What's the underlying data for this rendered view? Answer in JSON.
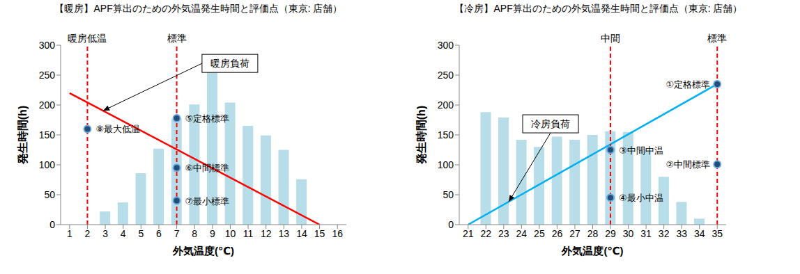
{
  "chart_data": [
    {
      "type": "bar",
      "title": "【暖房】APF算出のための外気温発生時間と評価点（東京: 店舗）",
      "x_label": "外気温度(℃)",
      "y_label": "発生時間(h)",
      "x": [
        1,
        2,
        3,
        4,
        5,
        6,
        7,
        8,
        9,
        10,
        11,
        12,
        13,
        14,
        15,
        16
      ],
      "values": [
        null,
        null,
        22,
        37,
        86,
        127,
        177,
        201,
        258,
        204,
        165,
        149,
        125,
        76,
        null,
        null
      ],
      "color": "#b7dde8",
      "xlim": [
        0.5,
        16.5
      ],
      "xticks": [
        1,
        2,
        3,
        4,
        5,
        6,
        7,
        8,
        9,
        10,
        11,
        12,
        13,
        14,
        15,
        16
      ],
      "ylim": [
        0,
        300
      ],
      "yticks": [
        0,
        50,
        100,
        150,
        200,
        250,
        300
      ],
      "grid": false,
      "series": [
        {
          "type": "line",
          "name": "暖房負荷",
          "color": "#ff0000",
          "x": [
            1,
            15
          ],
          "values": [
            220,
            0
          ]
        },
        {
          "type": "scatter",
          "color": "#1f4e79",
          "x": [
            2,
            7,
            7,
            7
          ],
          "values": [
            160,
            178,
            95,
            40
          ],
          "labels": [
            "⑧最大低温",
            "⑤定格標準",
            "⑥中間標準",
            "⑦最小標準"
          ]
        },
        {
          "type": "reference",
          "color": "#ff0000",
          "line_style": "dashed",
          "x": [
            2,
            7
          ],
          "labels": [
            "暖房低温",
            "標準"
          ]
        }
      ]
    },
    {
      "type": "bar",
      "title": "【冷房】APF算出のための外気温発生時間と評価点（東京: 店舗）",
      "x_label": "外気温度(℃)",
      "y_label": "発生時間(h)",
      "x": [
        21,
        22,
        23,
        24,
        25,
        26,
        27,
        28,
        29,
        30,
        31,
        32,
        33,
        34,
        35
      ],
      "values": [
        null,
        188,
        179,
        142,
        130,
        147,
        142,
        150,
        156,
        155,
        125,
        80,
        38,
        10,
        null
      ],
      "color": "#b7dde8",
      "xlim": [
        20.5,
        35.5
      ],
      "xticks": [
        21,
        22,
        23,
        24,
        25,
        26,
        27,
        28,
        29,
        30,
        31,
        32,
        33,
        34,
        35
      ],
      "ylim": [
        0,
        300
      ],
      "yticks": [
        0,
        50,
        100,
        150,
        200,
        250,
        300
      ],
      "grid": false,
      "series": [
        {
          "type": "line",
          "name": "冷房負荷",
          "color": "#00b0f0",
          "x": [
            21,
            35
          ],
          "values": [
            0,
            235
          ]
        },
        {
          "type": "scatter",
          "color": "#1f4e79",
          "x": [
            35,
            35,
            29,
            29
          ],
          "values": [
            235,
            101,
            125,
            45
          ],
          "labels": [
            "①定格標準",
            "②中間標準",
            "③中間中温",
            "④最小中温"
          ]
        },
        {
          "type": "reference",
          "color": "#ff0000",
          "line_style": "dashed",
          "x": [
            29,
            35
          ],
          "labels": [
            "中間",
            "標準"
          ]
        }
      ]
    }
  ]
}
